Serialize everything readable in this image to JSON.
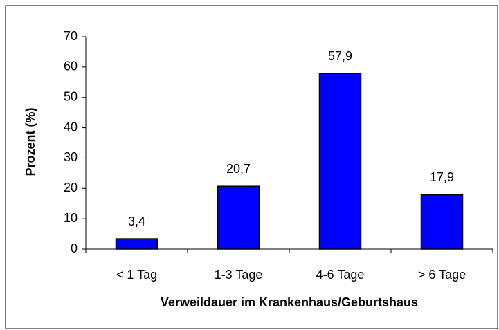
{
  "chart_data": {
    "type": "bar",
    "xlabel": "Verweildauer im Krankenhaus/Geburtshaus",
    "ylabel": "Prozent (%)",
    "categories": [
      "< 1 Tag",
      "1-3 Tage",
      "4-6 Tage",
      "> 6 Tage"
    ],
    "values": [
      3.4,
      20.7,
      57.9,
      17.9
    ],
    "value_labels": [
      "3,4",
      "20,7",
      "57,9",
      "17,9"
    ],
    "color": "#0000ff",
    "ylim": [
      0,
      70
    ],
    "yticks": [
      0,
      10,
      20,
      30,
      40,
      50,
      60,
      70
    ],
    "grid": false
  }
}
